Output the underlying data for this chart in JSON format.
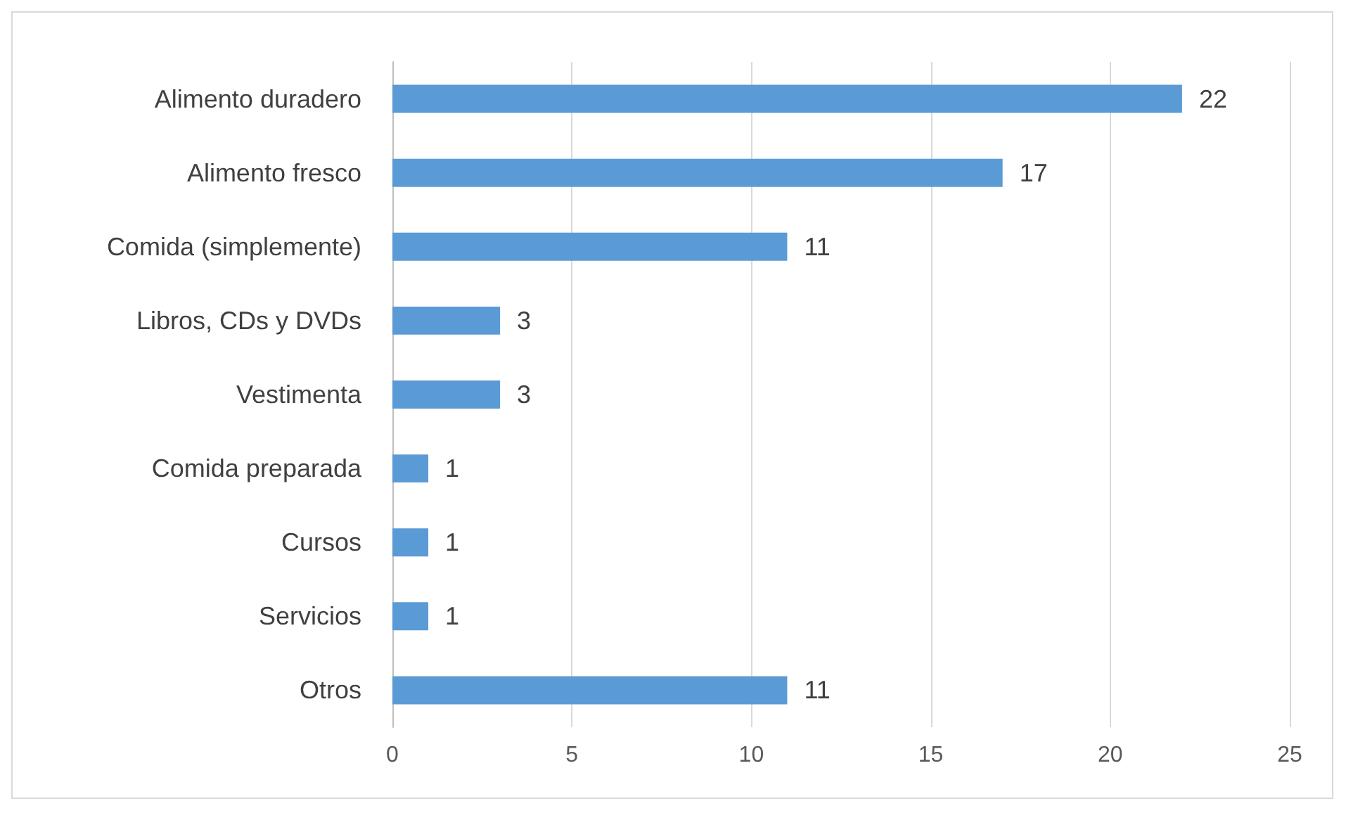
{
  "chart_data": {
    "type": "bar",
    "orientation": "horizontal",
    "categories": [
      "Alimento duradero",
      "Alimento fresco",
      "Comida (simplemente)",
      "Libros, CDs y DVDs",
      "Vestimenta",
      "Comida preparada",
      "Cursos",
      "Servicios",
      "Otros"
    ],
    "values": [
      22,
      17,
      11,
      3,
      3,
      1,
      1,
      1,
      11
    ],
    "color": "#5b9bd5",
    "xlim": [
      0,
      25
    ],
    "xticks": [
      0,
      5,
      10,
      15,
      20,
      25
    ],
    "grid": "x",
    "data_labels": true
  }
}
